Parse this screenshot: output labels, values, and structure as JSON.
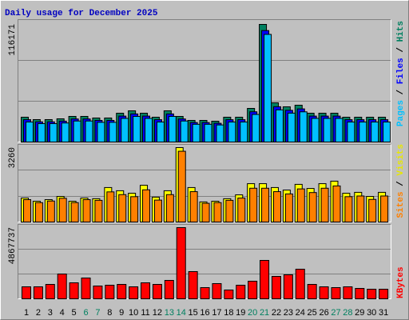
{
  "chart_data": [
    {
      "type": "bar",
      "title": "Daily usage for December 2025",
      "ylim": [
        0,
        116171
      ],
      "yticks": [
        116171
      ],
      "grid": true,
      "legend_separator": " / ",
      "series": [
        {
          "name": "Hits",
          "color": "#008060",
          "values": [
            24500,
            22130,
            22130,
            22920,
            25290,
            25290,
            23710,
            23710,
            28450,
            30820,
            28450,
            24500,
            30820,
            25290,
            21340,
            21340,
            20550,
            24500,
            24500,
            33190,
            116171,
            38720,
            34770,
            36350,
            28450,
            28450,
            28450,
            24500,
            24500,
            24500,
            24500
          ]
        },
        {
          "name": "Files",
          "color": "#0000ff",
          "values": [
            22050,
            19920,
            19920,
            20630,
            22760,
            22760,
            21340,
            21340,
            25600,
            27740,
            25600,
            22050,
            27740,
            22760,
            19210,
            19210,
            18500,
            22050,
            22050,
            29870,
            110100,
            34850,
            31290,
            32720,
            25600,
            25600,
            25600,
            22050,
            22050,
            22050,
            22050
          ]
        },
        {
          "name": "Pages",
          "color": "#00c0ff",
          "values": [
            19750,
            18150,
            18150,
            18790,
            20740,
            20740,
            19440,
            19440,
            23330,
            25270,
            23330,
            19750,
            25270,
            20740,
            17500,
            17500,
            16850,
            19750,
            19750,
            27220,
            106300,
            31750,
            28510,
            29810,
            23330,
            23330,
            23330,
            19750,
            19750,
            19750,
            19750
          ]
        }
      ]
    },
    {
      "type": "bar",
      "ylim": [
        0,
        3260
      ],
      "yticks": [
        3260
      ],
      "grid": true,
      "legend_separator": " / ",
      "series": [
        {
          "name": "Visits",
          "color": "#ffff00",
          "values": [
            1050,
            910,
            980,
            1120,
            910,
            1050,
            1020,
            1510,
            1370,
            1260,
            1610,
            1090,
            1370,
            3260,
            1510,
            880,
            910,
            1020,
            1190,
            1680,
            1680,
            1510,
            1400,
            1650,
            1470,
            1680,
            1790,
            1260,
            1300,
            1120,
            1300
          ]
        },
        {
          "name": "Sites",
          "color": "#ff8000",
          "values": [
            980,
            850,
            920,
            1040,
            850,
            980,
            950,
            1320,
            1200,
            1110,
            1410,
            960,
            1200,
            3100,
            1330,
            820,
            850,
            950,
            1050,
            1480,
            1480,
            1330,
            1230,
            1450,
            1290,
            1480,
            1580,
            1110,
            1140,
            990,
            1140
          ]
        }
      ]
    },
    {
      "type": "bar",
      "ylim": [
        0,
        4867737
      ],
      "yticks": [
        4867737
      ],
      "grid": true,
      "categories": [
        "1",
        "2",
        "3",
        "4",
        "5",
        "6",
        "7",
        "8",
        "9",
        "10",
        "11",
        "12",
        "13",
        "14",
        "15",
        "16",
        "17",
        "18",
        "19",
        "20",
        "21",
        "22",
        "23",
        "24",
        "25",
        "26",
        "27",
        "28",
        "29",
        "30",
        "31"
      ],
      "highlight_indices": [
        5,
        6,
        12,
        13,
        19,
        20,
        26,
        27
      ],
      "highlight_color": "#008060",
      "series": [
        {
          "name": "KBytes",
          "color": "#ff0000",
          "values": [
            820500,
            820500,
            984600,
            1695700,
            1094000,
            1422200,
            875200,
            929900,
            984600,
            820500,
            1094000,
            984600,
            1258100,
            4867737,
            1859800,
            765800,
            1039300,
            601700,
            929900,
            1203400,
            2625600,
            1531600,
            1641000,
            2023900,
            984600,
            820500,
            765800,
            820500,
            711100,
            656400,
            656400
          ]
        }
      ]
    }
  ]
}
